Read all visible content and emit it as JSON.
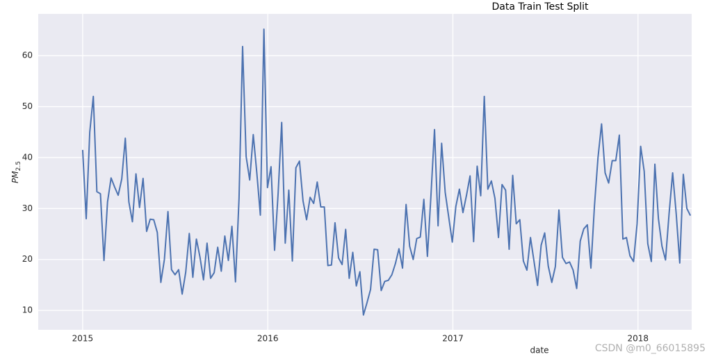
{
  "chart_data": {
    "type": "line",
    "title": "Data Train Test Split",
    "xlabel": "date",
    "ylabel": "PM",
    "ylabel_sub": "2.5",
    "watermark": "CSDN @m0_66015895",
    "xlim": [
      2014.76,
      2018.29
    ],
    "xticks": [
      2015,
      2016,
      2017,
      2018
    ],
    "ylim": [
      6.2,
      68.2
    ],
    "yticks": [
      10,
      20,
      30,
      40,
      50,
      60
    ],
    "grid": true,
    "x": [
      2015,
      2015.0192,
      2015.0384,
      2015.0576,
      2015.0768,
      2015.096,
      2015.1152,
      2015.1344,
      2015.1536,
      2015.1728,
      2015.192,
      2015.2112,
      2015.2304,
      2015.2496,
      2015.2688,
      2015.288,
      2015.3072,
      2015.3264,
      2015.3456,
      2015.3648,
      2015.384,
      2015.4032,
      2015.4224,
      2015.4416,
      2015.4608,
      2015.48,
      2015.4992,
      2015.5184,
      2015.5376,
      2015.5568,
      2015.576,
      2015.5952,
      2015.6144,
      2015.6336,
      2015.6528,
      2015.672,
      2015.6912,
      2015.7104,
      2015.7296,
      2015.7488,
      2015.768,
      2015.7872,
      2015.8064,
      2015.8256,
      2015.8448,
      2015.864,
      2015.8832,
      2015.9024,
      2015.9216,
      2015.9408,
      2015.96,
      2015.9792,
      2015.9984,
      2016.0176,
      2016.0368,
      2016.056,
      2016.0752,
      2016.0944,
      2016.1136,
      2016.1328,
      2016.152,
      2016.1712,
      2016.1904,
      2016.2096,
      2016.2288,
      2016.248,
      2016.2672,
      2016.2864,
      2016.3056,
      2016.3248,
      2016.344,
      2016.3632,
      2016.3824,
      2016.4016,
      2016.4208,
      2016.44,
      2016.4592,
      2016.4784,
      2016.4976,
      2016.5168,
      2016.536,
      2016.5552,
      2016.5744,
      2016.5936,
      2016.6128,
      2016.632,
      2016.6512,
      2016.6704,
      2016.6896,
      2016.7088,
      2016.728,
      2016.7472,
      2016.7664,
      2016.7856,
      2016.8048,
      2016.824,
      2016.8432,
      2016.8624,
      2016.8816,
      2016.9008,
      2016.92,
      2016.9392,
      2016.9584,
      2016.9776,
      2016.9968,
      2017.016,
      2017.0352,
      2017.0544,
      2017.0736,
      2017.0928,
      2017.112,
      2017.1312,
      2017.1504,
      2017.1696,
      2017.1888,
      2017.208,
      2017.2272,
      2017.2464,
      2017.2656,
      2017.2848,
      2017.304,
      2017.3232,
      2017.3424,
      2017.3616,
      2017.3808,
      2017.4,
      2017.4192,
      2017.4384,
      2017.4576,
      2017.4768,
      2017.496,
      2017.5152,
      2017.5344,
      2017.5536,
      2017.5728,
      2017.592,
      2017.6112,
      2017.6304,
      2017.6496,
      2017.6688,
      2017.688,
      2017.7072,
      2017.7264,
      2017.7456,
      2017.7648,
      2017.784,
      2017.8032,
      2017.8224,
      2017.8416,
      2017.8608,
      2017.88,
      2017.8992,
      2017.9184,
      2017.9376,
      2017.9568,
      2017.976,
      2017.9952,
      2018.0144,
      2018.0336,
      2018.0528,
      2018.072,
      2018.0912,
      2018.1104,
      2018.1296,
      2018.1488,
      2018.168,
      2018.1872,
      2018.2064,
      2018.2256,
      2018.2448,
      2018.264,
      2018.2832
    ],
    "series": [
      {
        "color": "#4c72b0",
        "values": [
          41.5,
          28,
          45,
          52,
          33.3,
          32.9,
          19.8,
          31.3,
          36,
          34.2,
          32.6,
          35.8,
          43.8,
          31.3,
          27.4,
          36.8,
          30.2,
          35.9,
          25.5,
          27.9,
          27.8,
          25.3,
          15.5,
          20,
          29.4,
          18,
          17,
          18,
          13.2,
          17.5,
          25.1,
          16.5,
          24,
          20.5,
          16,
          23.2,
          16.3,
          17.4,
          22.4,
          17.7,
          24.6,
          19.8,
          26.5,
          15.6,
          32,
          61.8,
          40.2,
          35.6,
          44.5,
          37,
          28.7,
          65.2,
          34.1,
          38.2,
          21.8,
          33,
          46.9,
          23.2,
          33.6,
          19.7,
          38,
          39.3,
          31.5,
          27.8,
          32.2,
          31,
          35.2,
          30.3,
          30.3,
          18.8,
          18.9,
          27.2,
          20.3,
          19,
          25.9,
          16.3,
          21.4,
          14.8,
          17.6,
          9.1,
          11.5,
          14.1,
          22,
          21.9,
          13.9,
          15.7,
          15.9,
          17,
          19.2,
          22.1,
          18.3,
          30.8,
          22.6,
          20,
          24.1,
          24.4,
          31.8,
          20.6,
          32.6,
          45.5,
          26.6,
          42.8,
          33.2,
          28.3,
          23.4,
          30.4,
          33.8,
          29.2,
          32.6,
          36.4,
          23.5,
          38.3,
          32.5,
          52,
          33.8,
          35.4,
          32,
          24.3,
          34.7,
          33.6,
          22,
          36.5,
          27,
          27.8,
          19.7,
          17.9,
          24.3,
          19.6,
          14.9,
          22.8,
          25.2,
          18.7,
          15.5,
          18.6,
          29.7,
          20.4,
          19.2,
          19.5,
          17.9,
          14.3,
          23.6,
          26,
          26.8,
          18.3,
          30.5,
          40,
          46.6,
          37,
          35,
          39.4,
          39.4,
          44.4,
          24,
          24.3,
          20.7,
          19.6,
          27,
          42.2,
          37.3,
          23.1,
          19.6,
          38.7,
          28,
          22.6,
          19.9,
          29,
          37,
          29,
          19.3,
          36.7,
          30,
          28.6
        ]
      }
    ]
  }
}
